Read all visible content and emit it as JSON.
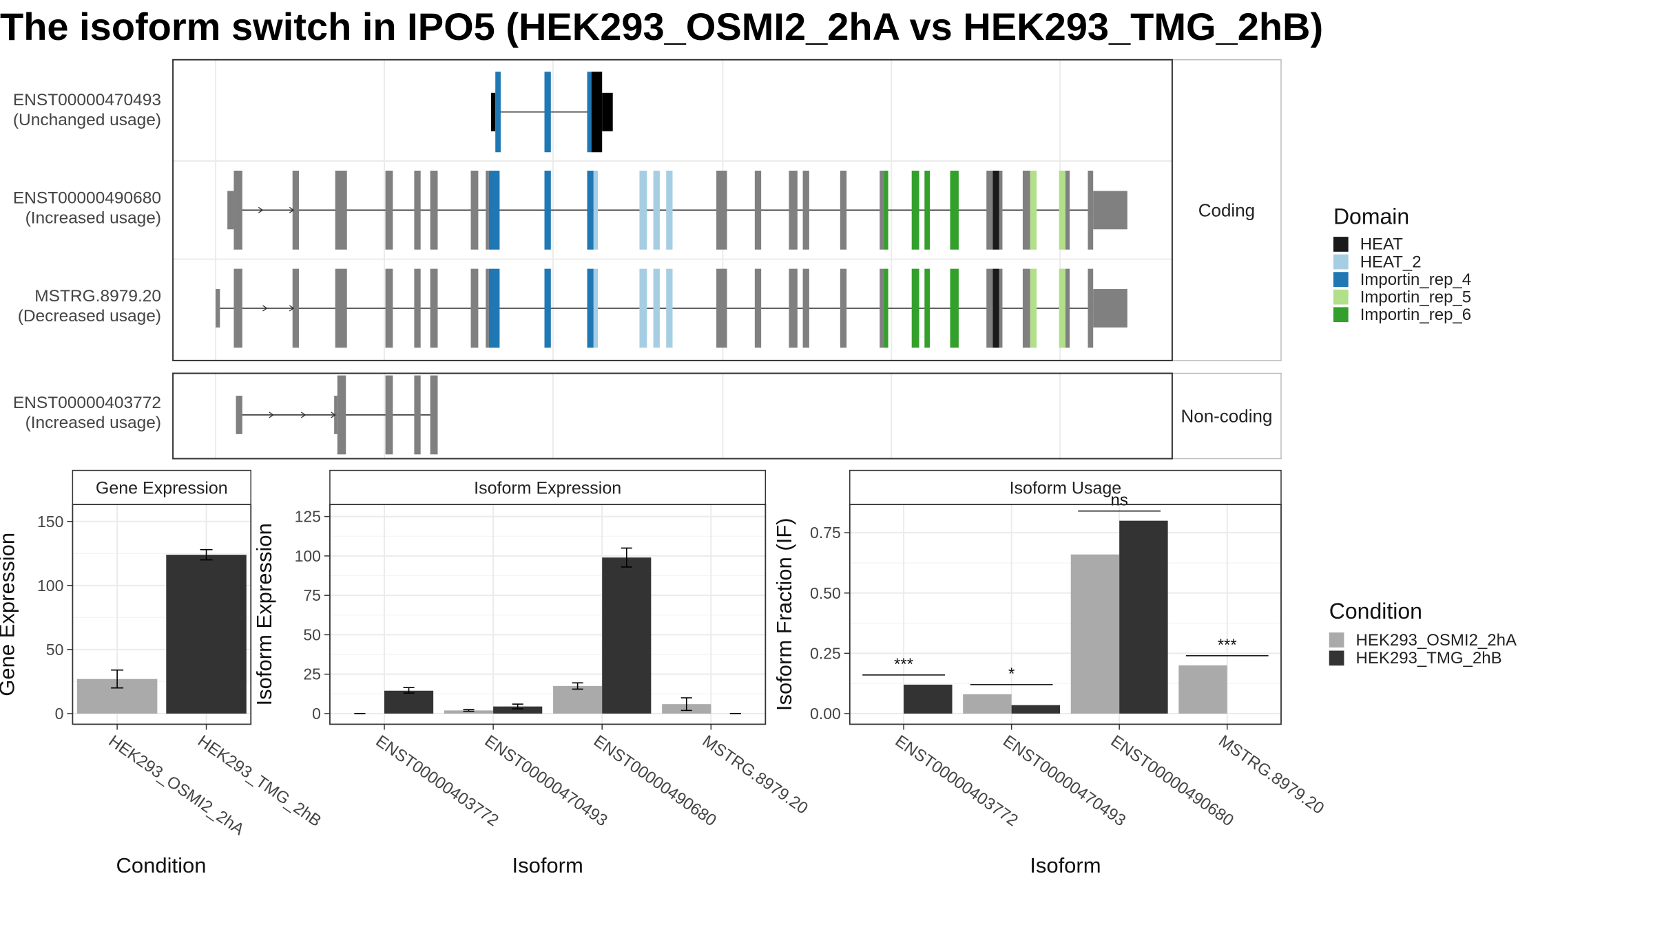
{
  "title": "The isoform switch in IPO5 (HEK293_OSMI2_2hA vs HEK293_TMG_2hB)",
  "colors": {
    "HEAT": "#1a1a1a",
    "HEAT_2": "#a6cee3",
    "Importin_rep_4": "#1f78b4",
    "Importin_rep_5": "#b2df8a",
    "Importin_rep_6": "#33a02c",
    "exon": "#808080",
    "cond_a": "#aaaaaa",
    "cond_b": "#333333"
  },
  "structure": {
    "coding_label": "Coding",
    "noncoding_label": "Non-coding",
    "isoforms": [
      {
        "id": "ENST00000470493",
        "usage": "(Unchanged usage)",
        "group": "coding"
      },
      {
        "id": "ENST00000490680",
        "usage": "(Increased usage)",
        "group": "coding"
      },
      {
        "id": "MSTRG.8979.20",
        "usage": "(Decreased usage)",
        "group": "coding"
      },
      {
        "id": "ENST00000403772",
        "usage": "(Increased usage)",
        "group": "non-coding"
      }
    ],
    "domain_legend": {
      "title": "Domain",
      "items": [
        "HEAT",
        "HEAT_2",
        "Importin_rep_4",
        "Importin_rep_5",
        "Importin_rep_6"
      ]
    }
  },
  "condition_legend": {
    "title": "Condition",
    "items": [
      "HEK293_OSMI2_2hA",
      "HEK293_TMG_2hB"
    ]
  },
  "chart_data": [
    {
      "type": "bar",
      "title": "Gene Expression",
      "xlabel": "Condition",
      "ylabel": "Gene Expression",
      "categories": [
        "HEK293_OSMI2_2hA",
        "HEK293_TMG_2hB"
      ],
      "values": [
        27,
        124
      ],
      "errors": [
        [
          20,
          34
        ],
        [
          120,
          128
        ]
      ],
      "ylim": [
        0,
        160
      ],
      "yticks": [
        0,
        50,
        100,
        150
      ]
    },
    {
      "type": "bar",
      "title": "Isoform Expression",
      "xlabel": "Isoform",
      "ylabel": "Isoform Expression",
      "categories": [
        "ENST00000403772",
        "ENST00000470493",
        "ENST00000490680",
        "MSTRG.8979.20"
      ],
      "series": [
        {
          "name": "HEK293_OSMI2_2hA",
          "values": [
            0,
            2,
            17.5,
            6
          ],
          "errors": [
            [
              0,
              0
            ],
            [
              1.5,
              2.5
            ],
            [
              15.5,
              19.5
            ],
            [
              2,
              10
            ]
          ]
        },
        {
          "name": "HEK293_TMG_2hB",
          "values": [
            14.5,
            4.5,
            99,
            0
          ],
          "errors": [
            [
              13,
              16.5
            ],
            [
              3,
              6
            ],
            [
              93,
              105
            ],
            [
              0,
              0
            ]
          ]
        }
      ],
      "ylim": [
        0,
        130
      ],
      "yticks": [
        0,
        25,
        50,
        75,
        100,
        125
      ]
    },
    {
      "type": "bar",
      "title": "Isoform Usage",
      "xlabel": "Isoform",
      "ylabel": "Isoform Fraction (IF)",
      "categories": [
        "ENST00000403772",
        "ENST00000470493",
        "ENST00000490680",
        "MSTRG.8979.20"
      ],
      "series": [
        {
          "name": "HEK293_OSMI2_2hA",
          "values": [
            0,
            0.08,
            0.66,
            0.2
          ]
        },
        {
          "name": "HEK293_TMG_2hB",
          "values": [
            0.12,
            0.035,
            0.8,
            0
          ]
        }
      ],
      "significance": [
        "***",
        "*",
        "ns",
        "***"
      ],
      "ylim": [
        0,
        0.85
      ],
      "yticks": [
        0,
        0.25,
        0.5,
        0.75
      ],
      "ytick_labels": [
        "0.00",
        "0.25",
        "0.50",
        "0.75"
      ]
    }
  ]
}
